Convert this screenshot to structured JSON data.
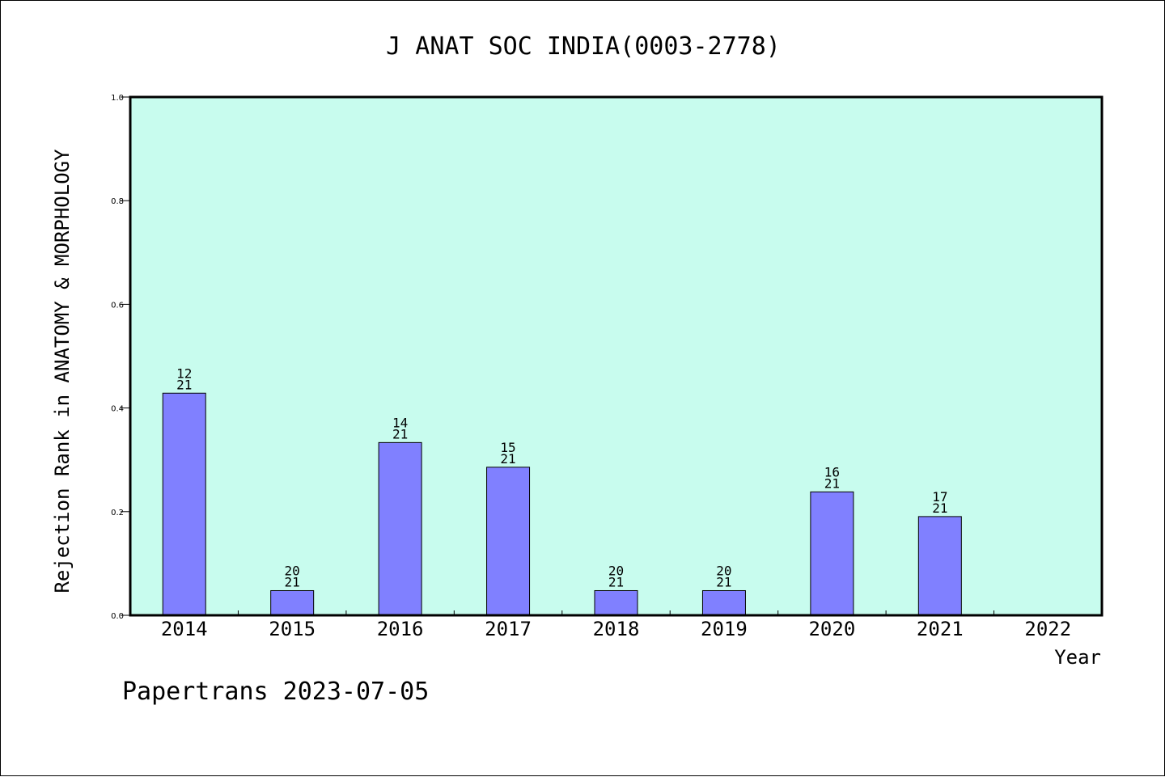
{
  "chart_data": {
    "type": "bar",
    "title": "J ANAT SOC INDIA(0003-2778)",
    "xlabel": "Year",
    "ylabel": "Rejection Rank in ANATOMY & MORPHOLOGY",
    "footer": "Papertrans 2023-07-05",
    "categories": [
      "2014",
      "2015",
      "2016",
      "2017",
      "2018",
      "2019",
      "2020",
      "2021",
      "2022"
    ],
    "values": [
      0.4286,
      0.0476,
      0.3333,
      0.2857,
      0.0476,
      0.0476,
      0.2381,
      0.1905,
      null
    ],
    "rank_labels": [
      {
        "rank": "12",
        "total": "21"
      },
      {
        "rank": "20",
        "total": "21"
      },
      {
        "rank": "14",
        "total": "21"
      },
      {
        "rank": "15",
        "total": "21"
      },
      {
        "rank": "20",
        "total": "21"
      },
      {
        "rank": "20",
        "total": "21"
      },
      {
        "rank": "16",
        "total": "21"
      },
      {
        "rank": "17",
        "total": "21"
      },
      null
    ],
    "yticks": [
      "0.0",
      "0.2",
      "0.4",
      "0.6",
      "0.8",
      "1.0"
    ],
    "ylim": [
      0,
      1
    ],
    "grid": false,
    "colors": {
      "plot_background": "#c8fcee",
      "bar_fill": "#8080ff",
      "bar_stroke": "#000000",
      "axis": "#000000"
    }
  }
}
